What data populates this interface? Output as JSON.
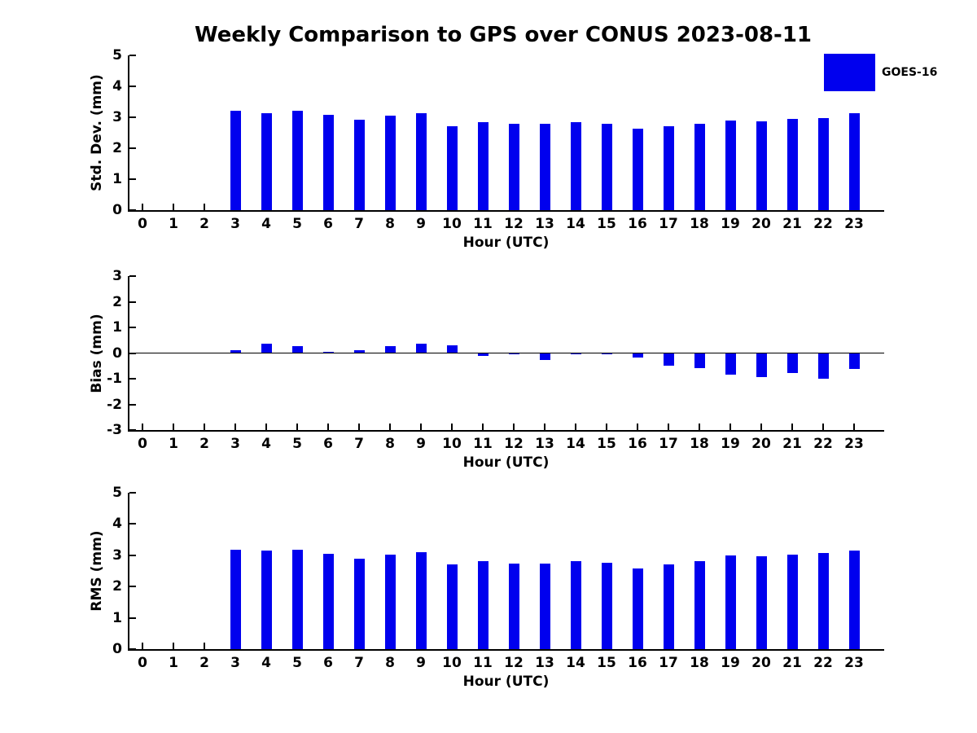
{
  "title": "Weekly Comparison to GPS over CONUS 2023-08-11",
  "legend": {
    "label": "GOES-16",
    "color": "#0000EE"
  },
  "chart_data": {
    "type": "bar",
    "x": [
      0,
      1,
      2,
      3,
      4,
      5,
      6,
      7,
      8,
      9,
      10,
      11,
      12,
      13,
      14,
      15,
      16,
      17,
      18,
      19,
      20,
      21,
      22,
      23
    ],
    "xlabel": "Hour (UTC)",
    "xlim": [
      -0.5,
      24
    ],
    "bar_color": "#0000EE",
    "bar_width_hours": 0.34,
    "legend_entries": [
      "GOES-16"
    ],
    "panels": [
      {
        "ylabel": "Std. Dev. (mm)",
        "ylim": [
          0,
          5
        ],
        "yticks": [
          0,
          1,
          2,
          3,
          4,
          5
        ],
        "zero_line": false,
        "series": [
          {
            "name": "GOES-16",
            "values": [
              0,
              0,
              0,
              3.22,
              3.14,
              3.2,
              3.09,
              2.93,
              3.04,
              3.12,
              2.72,
              2.85,
              2.78,
              2.78,
              2.85,
              2.8,
              2.64,
              2.7,
              2.78,
              2.9,
              2.88,
              2.94,
              2.97,
              3.14
            ]
          }
        ]
      },
      {
        "ylabel": "Bias (mm)",
        "ylim": [
          -3,
          3
        ],
        "yticks": [
          -3,
          -2,
          -1,
          0,
          1,
          2,
          3
        ],
        "zero_line": true,
        "series": [
          {
            "name": "GOES-16",
            "values": [
              0,
              0,
              0,
              0.12,
              0.35,
              0.26,
              0.05,
              0.11,
              0.28,
              0.36,
              0.31,
              -0.12,
              -0.06,
              -0.27,
              -0.03,
              -0.03,
              -0.16,
              -0.48,
              -0.58,
              -0.84,
              -0.93,
              -0.77,
              -1.0,
              -0.63
            ]
          }
        ]
      },
      {
        "ylabel": "RMS (mm)",
        "ylim": [
          0,
          5
        ],
        "yticks": [
          0,
          1,
          2,
          3,
          4,
          5
        ],
        "zero_line": false,
        "series": [
          {
            "name": "GOES-16",
            "values": [
              0,
              0,
              0,
              3.18,
              3.15,
              3.18,
              3.05,
              2.89,
              3.01,
              3.09,
              2.7,
              2.81,
              2.74,
              2.74,
              2.82,
              2.75,
              2.59,
              2.71,
              2.81,
              2.99,
              2.98,
              3.01,
              3.07,
              3.14
            ]
          }
        ]
      }
    ]
  }
}
